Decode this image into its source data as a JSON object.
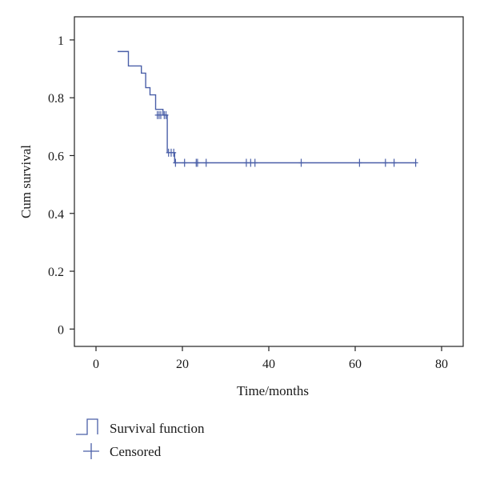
{
  "chart_data": {
    "type": "line",
    "title": "",
    "xlabel": "Time/months",
    "ylabel": "Cum survival",
    "xlim": [
      -5,
      85
    ],
    "ylim": [
      -0.06,
      1.08
    ],
    "xticks": [
      0,
      20,
      40,
      60,
      80
    ],
    "xtick_labels": [
      "0",
      "20",
      "40",
      "60",
      "80"
    ],
    "yticks": [
      0,
      0.2,
      0.4,
      0.6,
      0.8,
      1
    ],
    "ytick_labels": [
      "0",
      "0.2",
      "0.4",
      "0.6",
      "0.8",
      "1"
    ],
    "grid": false,
    "series": [
      {
        "name": "Survival function",
        "style": "step",
        "color": "#4a5fa8",
        "x": [
          5,
          7.5,
          10.5,
          11.5,
          12.5,
          13.8,
          15.5,
          16.5,
          18.2,
          74
        ],
        "y": [
          0.96,
          0.91,
          0.885,
          0.835,
          0.81,
          0.76,
          0.74,
          0.61,
          0.575,
          0.575
        ]
      },
      {
        "name": "Censored",
        "style": "marker-plus",
        "color": "#4a5fa8",
        "x": [
          14.2,
          14.6,
          15.0,
          15.8,
          16.2,
          16.8,
          17.4,
          18.0,
          18.4,
          20.5,
          23.2,
          23.5,
          25.5,
          34.8,
          35.8,
          36.8,
          47.5,
          61.0,
          67.0,
          69.0,
          74.0
        ],
        "y": [
          0.74,
          0.74,
          0.74,
          0.74,
          0.74,
          0.61,
          0.61,
          0.61,
          0.575,
          0.575,
          0.575,
          0.575,
          0.575,
          0.575,
          0.575,
          0.575,
          0.575,
          0.575,
          0.575,
          0.575,
          0.575
        ]
      }
    ],
    "legend": {
      "placement": "bottom-left",
      "entries": [
        "Survival function",
        "Censored"
      ]
    }
  }
}
